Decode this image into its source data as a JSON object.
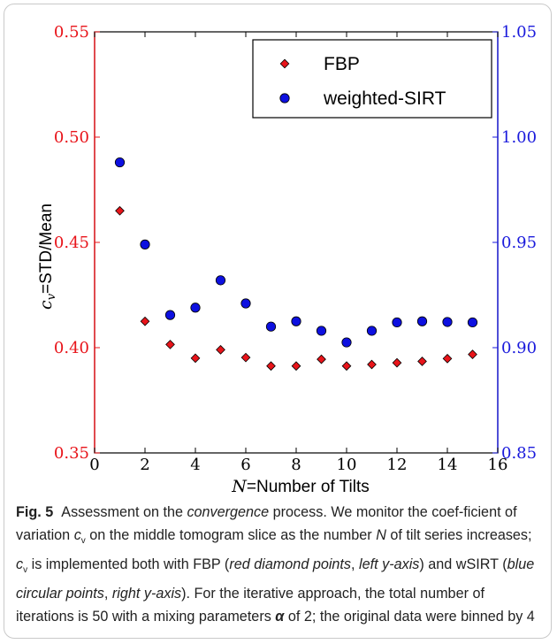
{
  "chart_data": {
    "type": "scatter",
    "x": [
      1,
      2,
      3,
      4,
      5,
      6,
      7,
      8,
      9,
      10,
      11,
      12,
      13,
      14,
      15
    ],
    "series": [
      {
        "name": "FBP",
        "axis": "left",
        "marker": "diamond",
        "color": "#e8141a",
        "values": [
          0.465,
          0.4125,
          0.4015,
          0.395,
          0.399,
          0.3953,
          0.3913,
          0.3913,
          0.3945,
          0.3913,
          0.392,
          0.3928,
          0.3935,
          0.3948,
          0.3968
        ]
      },
      {
        "name": "weighted-SIRT",
        "axis": "right",
        "marker": "circle",
        "color": "#0d10e0",
        "values": [
          0.988,
          0.949,
          0.9155,
          0.919,
          0.932,
          0.921,
          0.91,
          0.9125,
          0.908,
          0.9025,
          0.908,
          0.912,
          0.9125,
          0.9122,
          0.912
        ]
      }
    ],
    "xlabel_var": "N",
    "xlabel_rest": "=Number of Tilts",
    "ylabel_var": "c",
    "ylabel_sub": "v",
    "ylabel_rest": "=STD/Mean",
    "xlim": [
      0,
      16
    ],
    "ylim_left": [
      0.35,
      0.55
    ],
    "ylim_right": [
      0.85,
      1.05
    ],
    "xticks": [
      "0",
      "2",
      "4",
      "6",
      "8",
      "10",
      "12",
      "14",
      "16"
    ],
    "yticks_left": [
      "0.35",
      "0.40",
      "0.45",
      "0.50",
      "0.55"
    ],
    "yticks_right": [
      "0.85",
      "0.90",
      "0.95",
      "1.00",
      "1.05"
    ],
    "left_axis_color": "#e8141a",
    "right_axis_color": "#1a1adc",
    "legend_position": "top-right",
    "grid": false
  },
  "caption": {
    "fig_label": "Fig. 5",
    "t1": "Assessment on the ",
    "t2": "convergence",
    "t3": " process. We monitor the coef-ficient of variation ",
    "cv_c": "c",
    "cv_sub": "v",
    "t4": " on the middle tomogram slice as the number ",
    "n_var": "N",
    "t5": " of tilt series increases; ",
    "t6": " is implemented both with FBP (",
    "t7": "red diamond points",
    "t8": ", ",
    "t9": "left y-axis",
    "t10": ") and wSIRT (",
    "t11": "blue circular points",
    "t12": ", ",
    "t13": "right y-axis",
    "t14": "). For the iterative approach, the total number of iterations is 50 with a mixing parameters ",
    "alpha": "α",
    "t15": " of 2; the original data were binned by 4"
  }
}
